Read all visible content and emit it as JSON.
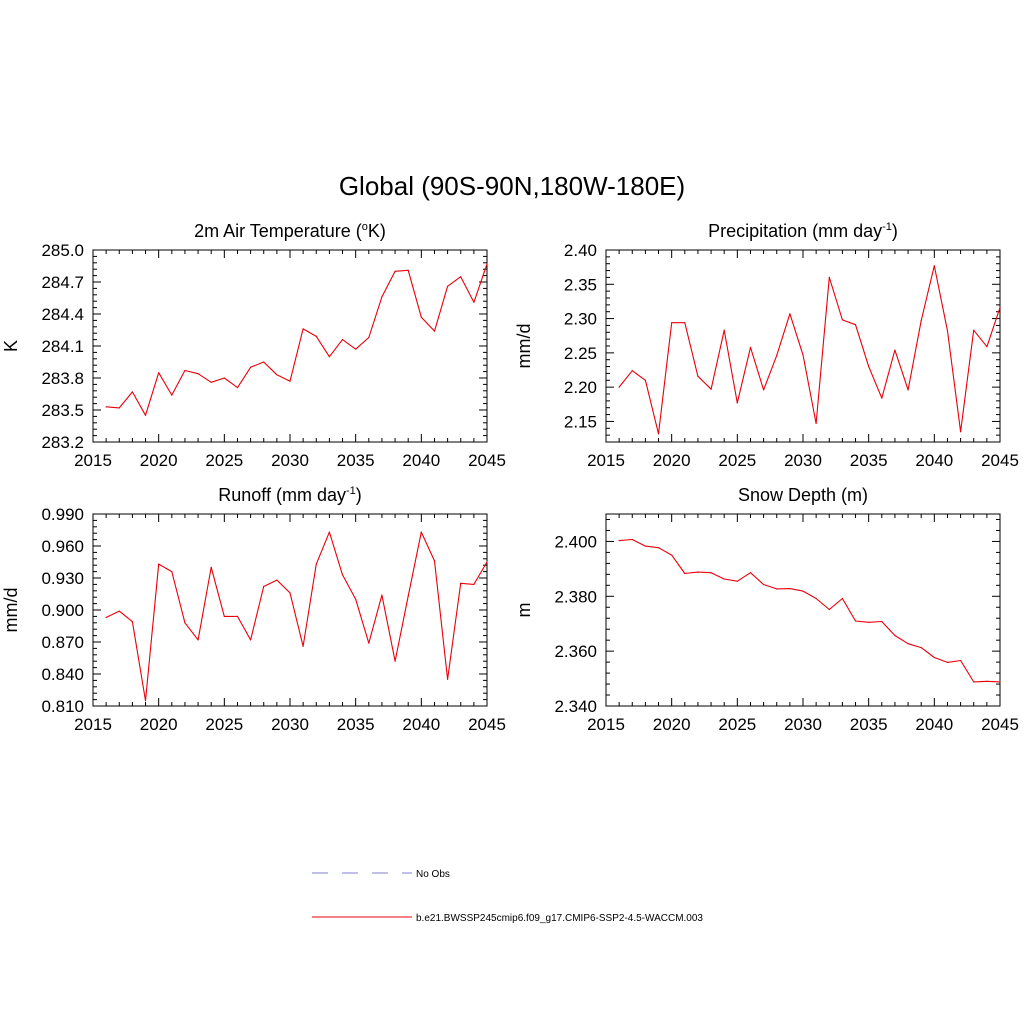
{
  "figure": {
    "title": "Global (90S-90N,180W-180E)",
    "line_color": "#e8000b",
    "obs_color": "#9999dd"
  },
  "legend": {
    "obs_label": "No Obs",
    "model_label": "b.e21.BWSSP245cmip6.f09_g17.CMIP6-SSP2-4.5-WACCM.003"
  },
  "chart_data": [
    {
      "type": "line",
      "title": "2m Air Temperature (°K)",
      "title_pre": "2m Air Temperature (",
      "title_sup": "o",
      "title_post": "K)",
      "xlabel": "",
      "ylabel": "K",
      "xlim": [
        2015,
        2045
      ],
      "ylim": [
        283.2,
        285.0
      ],
      "xticks": [
        2015,
        2020,
        2025,
        2030,
        2035,
        2040,
        2045
      ],
      "xtick_labels": [
        "2015",
        "2020",
        "2025",
        "2030",
        "2035",
        "2040",
        "2045"
      ],
      "yticks": [
        283.2,
        283.5,
        283.8,
        284.1,
        284.4,
        284.7,
        285.0
      ],
      "ytick_labels": [
        "283.2",
        "283.5",
        "283.8",
        "284.1",
        "284.4",
        "284.7",
        "285.0"
      ],
      "x": [
        2016,
        2017,
        2018,
        2019,
        2020,
        2021,
        2022,
        2023,
        2024,
        2025,
        2026,
        2027,
        2028,
        2029,
        2030,
        2031,
        2032,
        2033,
        2034,
        2035,
        2036,
        2037,
        2038,
        2039,
        2040,
        2041,
        2042,
        2043,
        2044,
        2045
      ],
      "series": [
        {
          "name": "b.e21.BWSSP245cmip6.f09_g17.CMIP6-SSP2-4.5-WACCM.003",
          "values": [
            283.53,
            283.52,
            283.67,
            283.45,
            283.85,
            283.64,
            283.87,
            283.84,
            283.76,
            283.8,
            283.71,
            283.9,
            283.95,
            283.83,
            283.77,
            284.26,
            284.19,
            284.0,
            284.16,
            284.07,
            284.18,
            284.56,
            284.8,
            284.81,
            284.37,
            284.24,
            284.66,
            284.75,
            284.51,
            284.87
          ]
        }
      ]
    },
    {
      "type": "line",
      "title": "Precipitation (mm day-1)",
      "title_pre": "Precipitation (mm day",
      "title_sup": "-1",
      "title_post": ")",
      "xlabel": "",
      "ylabel": "mm/d",
      "xlim": [
        2015,
        2045
      ],
      "ylim": [
        2.12,
        2.4
      ],
      "xticks": [
        2015,
        2020,
        2025,
        2030,
        2035,
        2040,
        2045
      ],
      "xtick_labels": [
        "2015",
        "2020",
        "2025",
        "2030",
        "2035",
        "2040",
        "2045"
      ],
      "yticks": [
        2.15,
        2.2,
        2.25,
        2.3,
        2.35,
        2.4
      ],
      "ytick_labels": [
        "2.15",
        "2.20",
        "2.25",
        "2.30",
        "2.35",
        "2.40"
      ],
      "x": [
        2016,
        2017,
        2018,
        2019,
        2020,
        2021,
        2022,
        2023,
        2024,
        2025,
        2026,
        2027,
        2028,
        2029,
        2030,
        2031,
        2032,
        2033,
        2034,
        2035,
        2036,
        2037,
        2038,
        2039,
        2040,
        2041,
        2042,
        2043,
        2044,
        2045
      ],
      "series": [
        {
          "name": "b.e21.BWSSP245cmip6.f09_g17.CMIP6-SSP2-4.5-WACCM.003",
          "values": [
            2.2,
            2.224,
            2.21,
            2.132,
            2.294,
            2.294,
            2.216,
            2.197,
            2.283,
            2.177,
            2.258,
            2.196,
            2.246,
            2.307,
            2.247,
            2.147,
            2.36,
            2.298,
            2.291,
            2.23,
            2.184,
            2.254,
            2.196,
            2.297,
            2.377,
            2.282,
            2.135,
            2.283,
            2.259,
            2.316
          ]
        }
      ]
    },
    {
      "type": "line",
      "title": "Runoff (mm day-1)",
      "title_pre": "Runoff (mm day",
      "title_sup": "-1",
      "title_post": ")",
      "xlabel": "",
      "ylabel": "mm/d",
      "xlim": [
        2015,
        2045
      ],
      "ylim": [
        0.81,
        0.99
      ],
      "xticks": [
        2015,
        2020,
        2025,
        2030,
        2035,
        2040,
        2045
      ],
      "xtick_labels": [
        "2015",
        "2020",
        "2025",
        "2030",
        "2035",
        "2040",
        "2045"
      ],
      "yticks": [
        0.81,
        0.84,
        0.87,
        0.9,
        0.93,
        0.96,
        0.99
      ],
      "ytick_labels": [
        "0.810",
        "0.840",
        "0.870",
        "0.900",
        "0.930",
        "0.960",
        "0.990"
      ],
      "x": [
        2016,
        2017,
        2018,
        2019,
        2020,
        2021,
        2022,
        2023,
        2024,
        2025,
        2026,
        2027,
        2028,
        2029,
        2030,
        2031,
        2032,
        2033,
        2034,
        2035,
        2036,
        2037,
        2038,
        2039,
        2040,
        2041,
        2042,
        2043,
        2044,
        2045
      ],
      "series": [
        {
          "name": "b.e21.BWSSP245cmip6.f09_g17.CMIP6-SSP2-4.5-WACCM.003",
          "values": [
            0.893,
            0.899,
            0.889,
            0.815,
            0.943,
            0.936,
            0.888,
            0.872,
            0.94,
            0.894,
            0.894,
            0.872,
            0.922,
            0.928,
            0.916,
            0.866,
            0.943,
            0.973,
            0.933,
            0.91,
            0.869,
            0.914,
            0.852,
            0.913,
            0.973,
            0.946,
            0.835,
            0.925,
            0.924,
            0.945
          ]
        }
      ]
    },
    {
      "type": "line",
      "title": "Snow Depth (m)",
      "title_pre": "Snow Depth (m)",
      "title_sup": "",
      "title_post": "",
      "xlabel": "",
      "ylabel": "m",
      "xlim": [
        2015,
        2045
      ],
      "ylim": [
        2.34,
        2.41
      ],
      "xticks": [
        2015,
        2020,
        2025,
        2030,
        2035,
        2040,
        2045
      ],
      "xtick_labels": [
        "2015",
        "2020",
        "2025",
        "2030",
        "2035",
        "2040",
        "2045"
      ],
      "yticks": [
        2.34,
        2.36,
        2.38,
        2.4
      ],
      "ytick_labels": [
        "2.340",
        "2.360",
        "2.380",
        "2.400"
      ],
      "x": [
        2016,
        2017,
        2018,
        2019,
        2020,
        2021,
        2022,
        2023,
        2024,
        2025,
        2026,
        2027,
        2028,
        2029,
        2030,
        2031,
        2032,
        2033,
        2034,
        2035,
        2036,
        2037,
        2038,
        2039,
        2040,
        2041,
        2042,
        2043,
        2044,
        2045
      ],
      "series": [
        {
          "name": "b.e21.BWSSP245cmip6.f09_g17.CMIP6-SSP2-4.5-WACCM.003",
          "values": [
            2.4003,
            2.4007,
            2.3983,
            2.3977,
            2.395,
            2.3883,
            2.3888,
            2.3886,
            2.3863,
            2.3855,
            2.3886,
            2.3843,
            2.3827,
            2.3828,
            2.3819,
            2.3792,
            2.3752,
            2.3792,
            2.371,
            2.3705,
            2.3708,
            2.3657,
            2.3627,
            2.3613,
            2.3577,
            2.3559,
            2.3566,
            2.3488,
            2.349,
            2.3488
          ]
        }
      ]
    }
  ]
}
